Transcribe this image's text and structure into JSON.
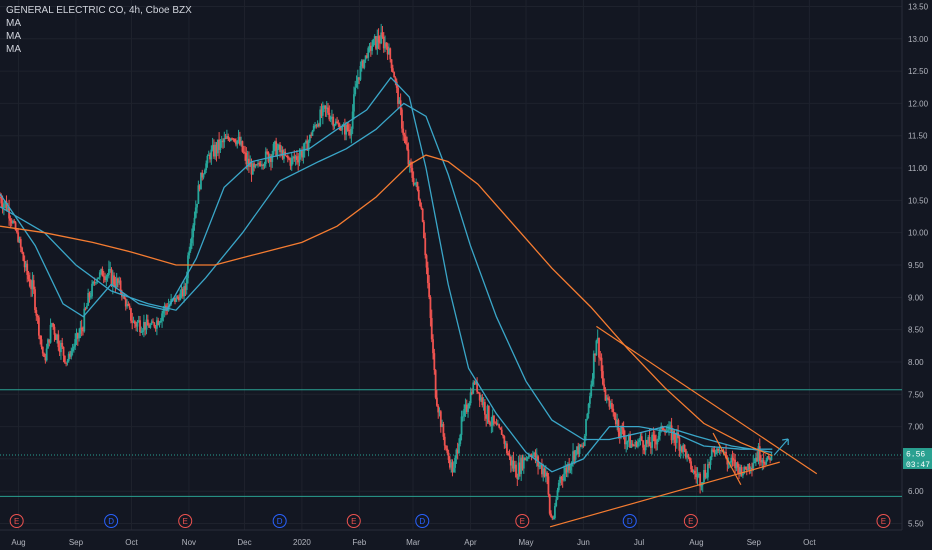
{
  "header": {
    "title": "GENERAL ELECTRIC CO, 4h, Cboe BZX",
    "indicators": [
      "MA",
      "MA",
      "MA"
    ]
  },
  "colors": {
    "background": "#131722",
    "grid": "#1e222d",
    "up_candle": "#26a69a",
    "down_candle": "#ef5350",
    "ma_short": "#3aa6c8",
    "ma_medium": "#3aa6c8",
    "ma_long": "#f57c31",
    "trendline": "#f57c31",
    "horizontal_line": "#2aa191",
    "price_tag": "#2aa191",
    "earnings_event": "#ef5350",
    "dividend_event": "#2962ff"
  },
  "chart_data": {
    "type": "candlestick",
    "title": "GENERAL ELECTRIC CO, 4h, Cboe BZX",
    "y_ticks": [
      "5.50",
      "6.00",
      "6.50",
      "7.00",
      "7.50",
      "8.00",
      "8.50",
      "9.00",
      "9.50",
      "10.00",
      "10.50",
      "11.00",
      "11.50",
      "12.00",
      "12.50",
      "13.00",
      "13.50"
    ],
    "ylim": [
      5.4,
      13.6
    ],
    "x_ticks": [
      {
        "label": "Aug",
        "date": "2019-08-01"
      },
      {
        "label": "Sep",
        "date": "2019-09-01"
      },
      {
        "label": "Oct",
        "date": "2019-10-01"
      },
      {
        "label": "Nov",
        "date": "2019-11-01"
      },
      {
        "label": "Dec",
        "date": "2019-12-01"
      },
      {
        "label": "2020",
        "date": "2020-01-01"
      },
      {
        "label": "Feb",
        "date": "2020-02-01"
      },
      {
        "label": "Mar",
        "date": "2020-03-01"
      },
      {
        "label": "Apr",
        "date": "2020-04-01"
      },
      {
        "label": "May",
        "date": "2020-05-01"
      },
      {
        "label": "Jun",
        "date": "2020-06-01"
      },
      {
        "label": "Jul",
        "date": "2020-07-01"
      },
      {
        "label": "Aug",
        "date": "2020-08-01"
      },
      {
        "label": "Sep",
        "date": "2020-09-01"
      },
      {
        "label": "Oct",
        "date": "2020-10-01"
      }
    ],
    "xlim": [
      "2019-07-22",
      "2020-11-20"
    ],
    "price_path": [
      [
        "2019-07-22",
        10.55
      ],
      [
        "2019-07-26",
        10.4
      ],
      [
        "2019-08-01",
        9.9
      ],
      [
        "2019-08-05",
        9.4
      ],
      [
        "2019-08-09",
        9.1
      ],
      [
        "2019-08-13",
        8.3
      ],
      [
        "2019-08-15",
        8.0
      ],
      [
        "2019-08-19",
        8.6
      ],
      [
        "2019-08-23",
        8.3
      ],
      [
        "2019-08-27",
        8.0
      ],
      [
        "2019-08-30",
        8.2
      ],
      [
        "2019-09-04",
        8.5
      ],
      [
        "2019-09-08",
        9.0
      ],
      [
        "2019-09-12",
        9.3
      ],
      [
        "2019-09-16",
        9.4
      ],
      [
        "2019-09-20",
        9.3
      ],
      [
        "2019-09-24",
        9.2
      ],
      [
        "2019-09-28",
        8.9
      ],
      [
        "2019-10-02",
        8.6
      ],
      [
        "2019-10-06",
        8.6
      ],
      [
        "2019-10-10",
        8.55
      ],
      [
        "2019-10-14",
        8.6
      ],
      [
        "2019-10-18",
        8.8
      ],
      [
        "2019-10-22",
        8.9
      ],
      [
        "2019-10-26",
        9.0
      ],
      [
        "2019-10-30",
        9.1
      ],
      [
        "2019-11-01",
        9.8
      ],
      [
        "2019-11-04",
        10.3
      ],
      [
        "2019-11-07",
        10.8
      ],
      [
        "2019-11-12",
        11.2
      ],
      [
        "2019-11-16",
        11.3
      ],
      [
        "2019-11-20",
        11.4
      ],
      [
        "2019-11-24",
        11.5
      ],
      [
        "2019-11-28",
        11.4
      ],
      [
        "2019-12-02",
        11.1
      ],
      [
        "2019-12-06",
        10.95
      ],
      [
        "2019-12-10",
        11.1
      ],
      [
        "2019-12-14",
        11.2
      ],
      [
        "2019-12-18",
        11.3
      ],
      [
        "2019-12-22",
        11.2
      ],
      [
        "2019-12-26",
        11.1
      ],
      [
        "2019-12-30",
        11.2
      ],
      [
        "2020-01-03",
        11.3
      ],
      [
        "2020-01-07",
        11.6
      ],
      [
        "2020-01-11",
        11.8
      ],
      [
        "2020-01-15",
        11.9
      ],
      [
        "2020-01-19",
        11.7
      ],
      [
        "2020-01-23",
        11.6
      ],
      [
        "2020-01-27",
        11.6
      ],
      [
        "2020-01-31",
        12.4
      ],
      [
        "2020-02-04",
        12.7
      ],
      [
        "2020-02-08",
        12.9
      ],
      [
        "2020-02-12",
        13.0
      ],
      [
        "2020-02-16",
        12.9
      ],
      [
        "2020-02-20",
        12.4
      ],
      [
        "2020-02-24",
        11.7
      ],
      [
        "2020-02-28",
        11.0
      ],
      [
        "2020-03-03",
        10.7
      ],
      [
        "2020-03-06",
        10.3
      ],
      [
        "2020-03-09",
        9.2
      ],
      [
        "2020-03-11",
        8.4
      ],
      [
        "2020-03-13",
        7.6
      ],
      [
        "2020-03-17",
        6.9
      ],
      [
        "2020-03-20",
        6.5
      ],
      [
        "2020-03-23",
        6.3
      ],
      [
        "2020-03-26",
        6.9
      ],
      [
        "2020-03-30",
        7.3
      ],
      [
        "2020-04-03",
        7.7
      ],
      [
        "2020-04-06",
        7.5
      ],
      [
        "2020-04-10",
        7.2
      ],
      [
        "2020-04-14",
        7.0
      ],
      [
        "2020-04-18",
        6.9
      ],
      [
        "2020-04-22",
        6.5
      ],
      [
        "2020-04-26",
        6.3
      ],
      [
        "2020-04-30",
        6.5
      ],
      [
        "2020-05-04",
        6.6
      ],
      [
        "2020-05-08",
        6.4
      ],
      [
        "2020-05-12",
        6.3
      ],
      [
        "2020-05-14",
        5.6
      ],
      [
        "2020-05-16",
        5.6
      ],
      [
        "2020-05-19",
        6.2
      ],
      [
        "2020-05-22",
        6.3
      ],
      [
        "2020-05-27",
        6.6
      ],
      [
        "2020-06-01",
        6.7
      ],
      [
        "2020-06-04",
        7.4
      ],
      [
        "2020-06-08",
        8.4
      ],
      [
        "2020-06-10",
        8.1
      ],
      [
        "2020-06-12",
        7.5
      ],
      [
        "2020-06-16",
        7.3
      ],
      [
        "2020-06-20",
        7.0
      ],
      [
        "2020-06-24",
        6.8
      ],
      [
        "2020-06-28",
        6.7
      ],
      [
        "2020-07-02",
        6.8
      ],
      [
        "2020-07-06",
        6.7
      ],
      [
        "2020-07-10",
        6.8
      ],
      [
        "2020-07-14",
        7.0
      ],
      [
        "2020-07-18",
        6.9
      ],
      [
        "2020-07-22",
        6.8
      ],
      [
        "2020-07-26",
        6.6
      ],
      [
        "2020-07-30",
        6.3
      ],
      [
        "2020-08-03",
        6.2
      ],
      [
        "2020-08-06",
        6.3
      ],
      [
        "2020-08-10",
        6.6
      ],
      [
        "2020-08-14",
        6.7
      ],
      [
        "2020-08-18",
        6.45
      ],
      [
        "2020-08-22",
        6.4
      ],
      [
        "2020-08-26",
        6.3
      ],
      [
        "2020-08-29",
        6.4
      ],
      [
        "2020-09-01",
        6.5
      ],
      [
        "2020-09-04",
        6.6
      ],
      [
        "2020-09-08",
        6.45
      ],
      [
        "2020-09-11",
        6.56
      ]
    ],
    "moving_averages": [
      {
        "name": "MA",
        "color": "#3aa6c8",
        "points": [
          [
            "2019-07-22",
            10.6
          ],
          [
            "2019-08-10",
            9.8
          ],
          [
            "2019-08-25",
            8.9
          ],
          [
            "2019-09-05",
            8.7
          ],
          [
            "2019-09-20",
            9.2
          ],
          [
            "2019-10-05",
            8.9
          ],
          [
            "2019-10-20",
            8.8
          ],
          [
            "2019-11-05",
            9.6
          ],
          [
            "2019-11-20",
            10.7
          ],
          [
            "2019-12-05",
            11.1
          ],
          [
            "2019-12-20",
            11.2
          ],
          [
            "2020-01-05",
            11.3
          ],
          [
            "2020-01-20",
            11.6
          ],
          [
            "2020-02-05",
            11.9
          ],
          [
            "2020-02-18",
            12.4
          ],
          [
            "2020-02-28",
            12.1
          ],
          [
            "2020-03-08",
            11.0
          ],
          [
            "2020-03-20",
            9.2
          ],
          [
            "2020-03-31",
            7.9
          ],
          [
            "2020-04-15",
            7.2
          ],
          [
            "2020-05-01",
            6.6
          ],
          [
            "2020-05-15",
            6.3
          ],
          [
            "2020-06-01",
            6.5
          ],
          [
            "2020-06-15",
            7.0
          ],
          [
            "2020-07-01",
            7.0
          ],
          [
            "2020-07-20",
            6.9
          ],
          [
            "2020-08-05",
            6.7
          ],
          [
            "2020-08-25",
            6.65
          ],
          [
            "2020-09-11",
            6.65
          ]
        ]
      },
      {
        "name": "MA",
        "color": "#3aa6c8",
        "points": [
          [
            "2019-07-22",
            10.4
          ],
          [
            "2019-08-15",
            10.0
          ],
          [
            "2019-09-01",
            9.5
          ],
          [
            "2019-09-20",
            9.1
          ],
          [
            "2019-10-10",
            8.9
          ],
          [
            "2019-10-25",
            8.8
          ],
          [
            "2019-11-10",
            9.3
          ],
          [
            "2019-11-30",
            10.0
          ],
          [
            "2019-12-20",
            10.8
          ],
          [
            "2020-01-10",
            11.1
          ],
          [
            "2020-01-25",
            11.3
          ],
          [
            "2020-02-10",
            11.6
          ],
          [
            "2020-02-25",
            12.0
          ],
          [
            "2020-03-08",
            11.8
          ],
          [
            "2020-03-20",
            10.9
          ],
          [
            "2020-04-01",
            9.8
          ],
          [
            "2020-04-15",
            8.7
          ],
          [
            "2020-05-01",
            7.7
          ],
          [
            "2020-05-15",
            7.1
          ],
          [
            "2020-06-01",
            6.8
          ],
          [
            "2020-06-15",
            6.8
          ],
          [
            "2020-07-01",
            6.9
          ],
          [
            "2020-07-15",
            7.0
          ],
          [
            "2020-08-01",
            6.85
          ],
          [
            "2020-08-20",
            6.7
          ],
          [
            "2020-09-11",
            6.6
          ]
        ]
      },
      {
        "name": "MA",
        "color": "#f57c31",
        "points": [
          [
            "2019-07-22",
            10.1
          ],
          [
            "2019-08-15",
            10.0
          ],
          [
            "2019-09-10",
            9.85
          ],
          [
            "2019-10-01",
            9.7
          ],
          [
            "2019-10-25",
            9.5
          ],
          [
            "2019-11-15",
            9.5
          ],
          [
            "2019-12-05",
            9.65
          ],
          [
            "2020-01-01",
            9.85
          ],
          [
            "2020-01-20",
            10.1
          ],
          [
            "2020-02-10",
            10.55
          ],
          [
            "2020-02-28",
            11.05
          ],
          [
            "2020-03-08",
            11.2
          ],
          [
            "2020-03-20",
            11.1
          ],
          [
            "2020-04-05",
            10.75
          ],
          [
            "2020-04-25",
            10.1
          ],
          [
            "2020-05-15",
            9.45
          ],
          [
            "2020-06-05",
            8.85
          ],
          [
            "2020-06-25",
            8.2
          ],
          [
            "2020-07-15",
            7.6
          ],
          [
            "2020-08-05",
            7.05
          ],
          [
            "2020-08-25",
            6.75
          ],
          [
            "2020-09-11",
            6.55
          ]
        ]
      }
    ],
    "trendlines": [
      {
        "name": "resistance",
        "from": [
          "2020-06-08",
          8.55
        ],
        "to": [
          "2020-10-05",
          6.27
        ]
      },
      {
        "name": "support",
        "from": [
          "2020-05-14",
          5.45
        ],
        "to": [
          "2020-09-15",
          6.45
        ]
      },
      {
        "name": "short-down",
        "from": [
          "2020-08-10",
          6.9
        ],
        "to": [
          "2020-08-25",
          6.1
        ]
      }
    ],
    "horizontal_levels": [
      7.57,
      5.92
    ],
    "current_price": "6.56",
    "countdown": "03:47",
    "events": [
      {
        "type": "E",
        "date": "2019-07-31"
      },
      {
        "type": "D",
        "date": "2019-09-20"
      },
      {
        "type": "E",
        "date": "2019-10-30"
      },
      {
        "type": "D",
        "date": "2019-12-20"
      },
      {
        "type": "E",
        "date": "2020-01-29"
      },
      {
        "type": "D",
        "date": "2020-03-06"
      },
      {
        "type": "E",
        "date": "2020-04-29"
      },
      {
        "type": "D",
        "date": "2020-06-26"
      },
      {
        "type": "E",
        "date": "2020-07-29"
      },
      {
        "type": "E",
        "date": "2020-11-10"
      }
    ]
  }
}
